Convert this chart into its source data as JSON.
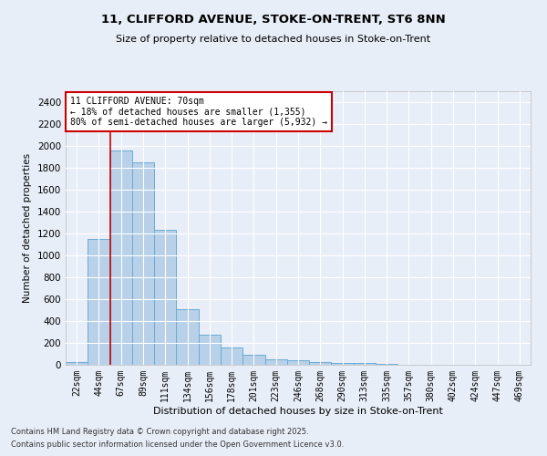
{
  "title_line1": "11, CLIFFORD AVENUE, STOKE-ON-TRENT, ST6 8NN",
  "title_line2": "Size of property relative to detached houses in Stoke-on-Trent",
  "xlabel": "Distribution of detached houses by size in Stoke-on-Trent",
  "ylabel": "Number of detached properties",
  "categories": [
    "22sqm",
    "44sqm",
    "67sqm",
    "89sqm",
    "111sqm",
    "134sqm",
    "156sqm",
    "178sqm",
    "201sqm",
    "223sqm",
    "246sqm",
    "268sqm",
    "290sqm",
    "313sqm",
    "335sqm",
    "357sqm",
    "380sqm",
    "402sqm",
    "424sqm",
    "447sqm",
    "469sqm"
  ],
  "values": [
    25,
    1150,
    1960,
    1850,
    1230,
    510,
    275,
    155,
    90,
    50,
    45,
    25,
    20,
    15,
    5,
    3,
    2,
    2,
    1,
    1,
    0
  ],
  "bar_color": "#b8d0e8",
  "bar_edge_color": "#6aaad4",
  "background_color": "#e8eef8",
  "grid_color": "#ffffff",
  "vline_color": "#cc0000",
  "vline_x_index": 2,
  "annotation_text": "11 CLIFFORD AVENUE: 70sqm\n← 18% of detached houses are smaller (1,355)\n80% of semi-detached houses are larger (5,932) →",
  "annotation_box_facecolor": "#ffffff",
  "annotation_box_edgecolor": "#cc0000",
  "ylim": [
    0,
    2500
  ],
  "yticks": [
    0,
    200,
    400,
    600,
    800,
    1000,
    1200,
    1400,
    1600,
    1800,
    2000,
    2200,
    2400
  ],
  "footer_line1": "Contains HM Land Registry data © Crown copyright and database right 2025.",
  "footer_line2": "Contains public sector information licensed under the Open Government Licence v3.0."
}
